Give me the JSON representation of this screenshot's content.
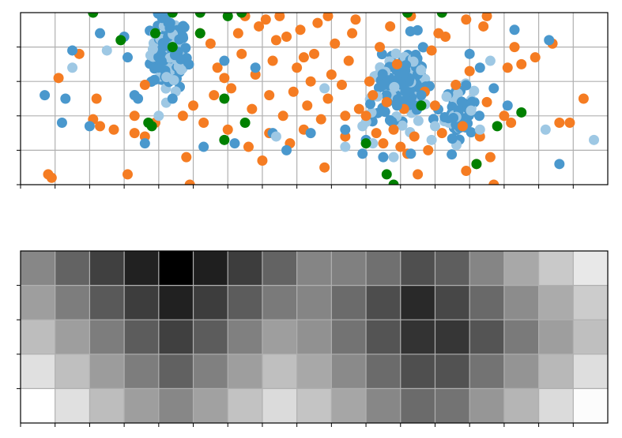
{
  "chart_data": [
    {
      "type": "scatter",
      "title": "",
      "xlabel": "",
      "ylabel": "",
      "xlim": [
        0,
        17
      ],
      "ylim": [
        0,
        5
      ],
      "grid": true,
      "tick_labels_visible": false,
      "clustered_point_colors": [
        "#4a98cd",
        "#9ec8e4"
      ],
      "clusters": [
        {
          "center": [
            4.3,
            3.8
          ],
          "spread": [
            0.45,
            0.9
          ],
          "count": 120
        },
        {
          "center": [
            11.3,
            3.1
          ],
          "spread": [
            0.4,
            1.0
          ],
          "count": 90
        },
        {
          "center": [
            12.7,
            2.1
          ],
          "spread": [
            0.35,
            0.6
          ],
          "count": 80
        },
        {
          "center": [
            10.6,
            2.6
          ],
          "spread": [
            0.5,
            0.7
          ],
          "count": 50
        }
      ],
      "series": [
        {
          "color": "#f57c22",
          "points": [
            [
              0.8,
              0.3
            ],
            [
              1.1,
              3.1
            ],
            [
              1.7,
              3.8
            ],
            [
              2.1,
              1.9
            ],
            [
              2.2,
              2.5
            ],
            [
              2.3,
              1.7
            ],
            [
              3.1,
              0.3
            ],
            [
              3.3,
              1.5
            ],
            [
              3.3,
              2.0
            ],
            [
              3.6,
              1.4
            ],
            [
              3.6,
              2.9
            ],
            [
              4.7,
              2.0
            ],
            [
              4.8,
              0.8
            ],
            [
              4.9,
              0.0
            ],
            [
              5.0,
              2.3
            ],
            [
              5.3,
              1.8
            ],
            [
              5.6,
              2.6
            ],
            [
              5.5,
              4.1
            ],
            [
              5.7,
              3.4
            ],
            [
              6.0,
              1.6
            ],
            [
              6.1,
              2.8
            ],
            [
              6.3,
              4.4
            ],
            [
              6.4,
              3.8
            ],
            [
              6.6,
              1.1
            ],
            [
              6.7,
              2.2
            ],
            [
              6.8,
              3.2
            ],
            [
              6.9,
              4.6
            ],
            [
              7.0,
              0.7
            ],
            [
              7.2,
              1.5
            ],
            [
              7.2,
              2.6
            ],
            [
              7.3,
              3.6
            ],
            [
              7.4,
              4.2
            ],
            [
              7.5,
              4.9
            ],
            [
              7.6,
              2.0
            ],
            [
              7.8,
              1.2
            ],
            [
              7.9,
              2.7
            ],
            [
              8.0,
              3.4
            ],
            [
              8.1,
              4.5
            ],
            [
              8.2,
              1.6
            ],
            [
              8.3,
              2.3
            ],
            [
              8.4,
              3.0
            ],
            [
              8.5,
              3.8
            ],
            [
              8.6,
              4.7
            ],
            [
              8.7,
              1.9
            ],
            [
              8.8,
              0.5
            ],
            [
              8.9,
              2.5
            ],
            [
              9.0,
              3.2
            ],
            [
              9.1,
              4.1
            ],
            [
              9.3,
              2.9
            ],
            [
              9.4,
              1.4
            ],
            [
              9.5,
              3.6
            ],
            [
              9.6,
              4.4
            ],
            [
              9.8,
              2.2
            ],
            [
              10.0,
              2.0
            ],
            [
              10.1,
              3.0
            ],
            [
              10.3,
              1.5
            ],
            [
              10.4,
              4.0
            ],
            [
              10.5,
              1.2
            ],
            [
              10.6,
              2.4
            ],
            [
              10.8,
              1.6
            ],
            [
              10.9,
              3.5
            ],
            [
              11.0,
              1.1
            ],
            [
              11.1,
              2.2
            ],
            [
              11.2,
              0.9
            ],
            [
              11.4,
              1.4
            ],
            [
              11.5,
              0.3
            ],
            [
              11.7,
              2.7
            ],
            [
              11.8,
              1.0
            ],
            [
              11.9,
              3.9
            ],
            [
              12.0,
              2.3
            ],
            [
              12.2,
              1.5
            ],
            [
              12.3,
              4.3
            ],
            [
              12.6,
              2.9
            ],
            [
              12.8,
              1.7
            ],
            [
              12.9,
              0.4
            ],
            [
              13.0,
              3.3
            ],
            [
              13.2,
              0.6
            ],
            [
              13.3,
              1.4
            ],
            [
              13.4,
              4.6
            ],
            [
              13.5,
              2.4
            ],
            [
              13.6,
              0.8
            ],
            [
              13.7,
              0.0
            ],
            [
              14.0,
              2.0
            ],
            [
              14.2,
              1.8
            ],
            [
              14.5,
              3.5
            ],
            [
              14.9,
              3.7
            ],
            [
              15.4,
              4.1
            ],
            [
              15.6,
              1.8
            ],
            [
              15.9,
              1.8
            ],
            [
              16.3,
              2.5
            ],
            [
              0.9,
              0.2
            ],
            [
              2.7,
              1.6
            ],
            [
              3.9,
              1.8
            ],
            [
              5.2,
              4.4
            ],
            [
              5.9,
              3.1
            ],
            [
              6.5,
              4.9
            ],
            [
              7.1,
              4.8
            ],
            [
              7.7,
              4.3
            ],
            [
              8.2,
              3.7
            ],
            [
              8.9,
              4.9
            ],
            [
              9.4,
              2.0
            ],
            [
              9.7,
              4.8
            ],
            [
              10.2,
              2.6
            ],
            [
              10.7,
              4.6
            ],
            [
              11.3,
              4.9
            ],
            [
              12.1,
              4.4
            ],
            [
              12.9,
              4.8
            ],
            [
              13.5,
              4.9
            ],
            [
              14.1,
              3.4
            ],
            [
              14.3,
              4.0
            ]
          ]
        },
        {
          "color": "#4a98cd",
          "points": [
            [
              0.7,
              2.6
            ],
            [
              1.3,
              2.5
            ],
            [
              1.2,
              1.8
            ],
            [
              1.5,
              3.9
            ],
            [
              2.0,
              1.7
            ],
            [
              2.3,
              4.4
            ],
            [
              3.0,
              4.3
            ],
            [
              3.1,
              3.7
            ],
            [
              3.3,
              2.6
            ],
            [
              3.4,
              2.5
            ],
            [
              3.6,
              1.2
            ],
            [
              4.4,
              2.5
            ],
            [
              5.3,
              1.1
            ],
            [
              5.9,
              3.6
            ],
            [
              6.2,
              1.2
            ],
            [
              6.8,
              3.4
            ],
            [
              7.3,
              1.5
            ],
            [
              7.7,
              1.0
            ],
            [
              8.4,
              1.5
            ],
            [
              9.4,
              1.6
            ],
            [
              9.9,
              0.9
            ],
            [
              10.0,
              1.3
            ],
            [
              10.5,
              0.8
            ],
            [
              10.9,
              2.3
            ],
            [
              11.3,
              0.9
            ],
            [
              11.6,
              2.6
            ],
            [
              13.0,
              3.8
            ],
            [
              13.3,
              3.4
            ],
            [
              13.7,
              2.8
            ],
            [
              14.1,
              2.3
            ],
            [
              15.3,
              4.2
            ],
            [
              15.6,
              0.6
            ],
            [
              14.3,
              4.5
            ]
          ]
        },
        {
          "color": "#9ec8e4",
          "points": [
            [
              1.5,
              3.4
            ],
            [
              2.5,
              3.9
            ],
            [
              4.0,
              2.0
            ],
            [
              7.4,
              1.4
            ],
            [
              8.8,
              2.8
            ],
            [
              9.4,
              1.1
            ],
            [
              9.9,
              1.7
            ],
            [
              10.8,
              0.8
            ],
            [
              12.0,
              1.7
            ],
            [
              13.6,
              3.6
            ],
            [
              15.2,
              1.6
            ],
            [
              16.6,
              1.3
            ],
            [
              10.2,
              1.2
            ],
            [
              11.9,
              1.3
            ],
            [
              13.3,
              1.6
            ]
          ]
        },
        {
          "color": "#008000",
          "points": [
            [
              2.1,
              5.0
            ],
            [
              2.9,
              4.2
            ],
            [
              3.7,
              1.8
            ],
            [
              3.8,
              1.7
            ],
            [
              3.9,
              4.4
            ],
            [
              4.4,
              4.0
            ],
            [
              4.4,
              5.0
            ],
            [
              5.2,
              4.4
            ],
            [
              5.2,
              5.0
            ],
            [
              5.9,
              1.3
            ],
            [
              5.9,
              2.5
            ],
            [
              6.0,
              4.9
            ],
            [
              6.4,
              5.0
            ],
            [
              6.5,
              1.8
            ],
            [
              10.0,
              1.2
            ],
            [
              10.6,
              0.3
            ],
            [
              10.8,
              0.0
            ],
            [
              11.6,
              2.3
            ],
            [
              12.2,
              5.0
            ],
            [
              13.2,
              0.6
            ],
            [
              13.8,
              1.7
            ],
            [
              14.5,
              2.1
            ],
            [
              11.2,
              5.0
            ]
          ]
        }
      ]
    },
    {
      "type": "heatmap",
      "title": "",
      "xlabel": "",
      "ylabel": "",
      "colormap": "gray_r",
      "grid": true,
      "tick_labels_visible": false,
      "n_cols": 17,
      "n_rows": 5,
      "values": [
        [
          0.47,
          0.61,
          0.75,
          0.87,
          1.0,
          0.88,
          0.76,
          0.61,
          0.48,
          0.5,
          0.56,
          0.69,
          0.63,
          0.48,
          0.34,
          0.21,
          0.09
        ],
        [
          0.38,
          0.51,
          0.65,
          0.76,
          0.87,
          0.76,
          0.64,
          0.52,
          0.48,
          0.58,
          0.7,
          0.84,
          0.72,
          0.59,
          0.45,
          0.33,
          0.2
        ],
        [
          0.26,
          0.38,
          0.51,
          0.64,
          0.75,
          0.64,
          0.5,
          0.38,
          0.43,
          0.55,
          0.67,
          0.8,
          0.79,
          0.67,
          0.52,
          0.38,
          0.25
        ],
        [
          0.12,
          0.25,
          0.39,
          0.51,
          0.62,
          0.5,
          0.38,
          0.25,
          0.34,
          0.46,
          0.58,
          0.69,
          0.68,
          0.55,
          0.42,
          0.28,
          0.13
        ],
        [
          0.0,
          0.12,
          0.26,
          0.38,
          0.47,
          0.37,
          0.24,
          0.14,
          0.23,
          0.35,
          0.47,
          0.58,
          0.55,
          0.41,
          0.29,
          0.14,
          0.01
        ]
      ]
    }
  ]
}
